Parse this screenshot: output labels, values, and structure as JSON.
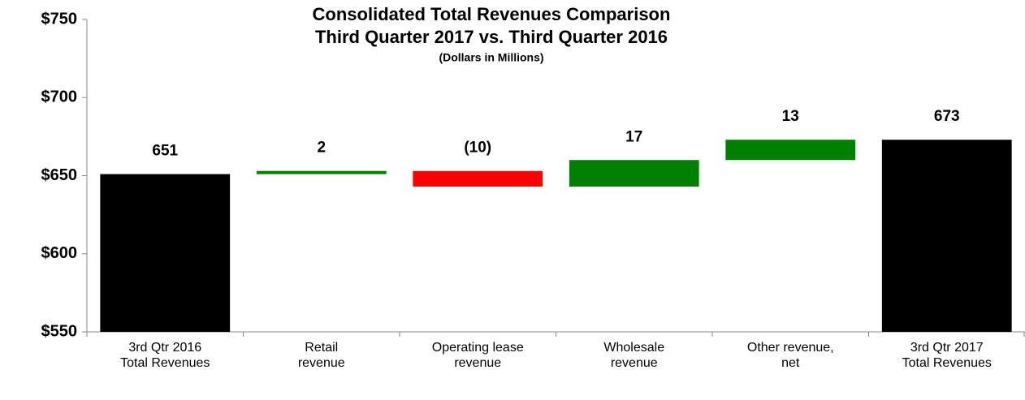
{
  "chart_data": {
    "type": "waterfall",
    "title": "Consolidated Total Revenues Comparison",
    "subtitle": "Third Quarter 2017 vs. Third Quarter 2016",
    "note": "(Dollars in Millions)",
    "categories": [
      [
        "3rd Qtr 2016",
        "Total Revenues"
      ],
      [
        "Retail",
        "revenue"
      ],
      [
        "Operating lease",
        "revenue"
      ],
      [
        "Wholesale",
        "revenue"
      ],
      [
        "Other revenue,",
        "net"
      ],
      [
        "3rd Qtr 2017",
        "Total Revenues"
      ]
    ],
    "values": [
      651,
      2,
      -10,
      17,
      13,
      673
    ],
    "value_labels": [
      "651",
      "2",
      "(10)",
      "17",
      "13",
      "673"
    ],
    "measure": [
      "total",
      "relative",
      "relative",
      "relative",
      "relative",
      "total"
    ],
    "colors": {
      "total": "#000000",
      "increase": "#008000",
      "decrease": "#ff0000"
    },
    "ylim": [
      550,
      750
    ],
    "yticks": [
      {
        "value": 550,
        "label": "$550"
      },
      {
        "value": 600,
        "label": "$600"
      },
      {
        "value": 650,
        "label": "$650"
      },
      {
        "value": 700,
        "label": "$700"
      },
      {
        "value": 750,
        "label": "$750"
      }
    ],
    "grid": false
  }
}
